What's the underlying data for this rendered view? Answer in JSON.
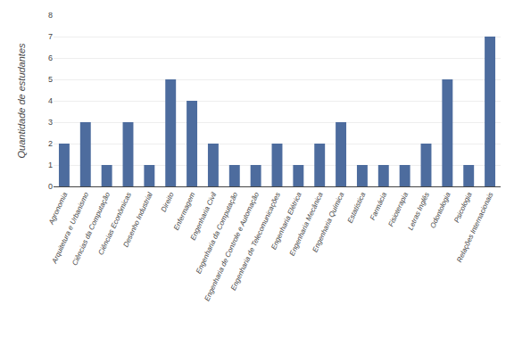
{
  "chart_data": {
    "type": "bar",
    "categories": [
      "Agronomia",
      "Arquitetura e Urbanismo",
      "Ciências da Computação",
      "Ciências Econômicas",
      "Desenho Industrial",
      "Direito",
      "Enfermagem",
      "Engenharia Civil",
      "Engenharia da Computação",
      "Engenharia de Controle e Automação",
      "Engenharia de Telecomunicações",
      "Engenharia Elétrica",
      "Engenharia Mecânica",
      "Engenharia Química",
      "Estatística",
      "Farmácia",
      "Fisioterapia",
      "Letras Inglês",
      "Odontologia",
      "Psicologia",
      "Relações Internacionais"
    ],
    "values": [
      2,
      3,
      1,
      3,
      1,
      5,
      4,
      2,
      1,
      1,
      2,
      1,
      2,
      3,
      1,
      1,
      1,
      2,
      5,
      1,
      7
    ],
    "color": "#4d6c9e",
    "ylabel": "Quantidade de estudantes",
    "ylim": [
      0,
      8
    ],
    "yticks": [
      0,
      1,
      2,
      3,
      4,
      5,
      6,
      7,
      8
    ],
    "grid": true
  }
}
